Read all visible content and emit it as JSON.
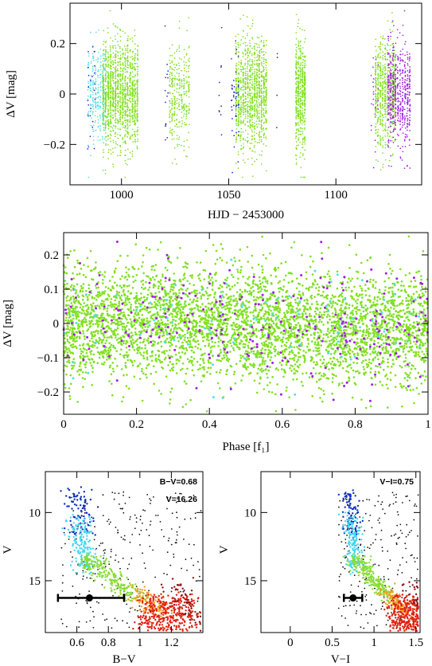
{
  "colors": {
    "cyan": "#55e0e0",
    "green": "#80e020",
    "blue": "#2222cc",
    "purple": "#a020e0",
    "black": "#111111",
    "navy": "#1030c0",
    "lightcyan": "#40d8f0",
    "lightgreen": "#88dd33",
    "orange": "#f0a020",
    "red": "#e02010",
    "darkred": "#901010",
    "marker": "#000000"
  },
  "chart_data": [
    {
      "type": "scatter",
      "name": "light-curve",
      "xlabel": "HJD − 2453000",
      "ylabel": "ΔV [mag]",
      "xlim": [
        976,
        1140
      ],
      "ylim": [
        0.36,
        -0.36
      ],
      "y_inverted": true,
      "xticks": [
        1000,
        1050,
        1100
      ],
      "yticks": [
        -0.2,
        0,
        0.2
      ],
      "xtick_labels": [
        "1000",
        "1050",
        "1100"
      ],
      "ytick_labels": [
        "−0.2",
        "0",
        "0.2"
      ],
      "scatter_amplitude_mag": 0.25,
      "observing_runs": [
        {
          "x_start": 984,
          "x_end": 993,
          "color": "cyan",
          "n": 260
        },
        {
          "x_start": 984,
          "x_end": 988,
          "color": "blue",
          "n": 25
        },
        {
          "x_start": 991,
          "x_end": 1008,
          "color": "green",
          "n": 1400
        },
        {
          "x_start": 1020,
          "x_end": 1022,
          "color": "blue",
          "n": 15
        },
        {
          "x_start": 1022,
          "x_end": 1032,
          "color": "green",
          "n": 320
        },
        {
          "x_start": 1045,
          "x_end": 1047,
          "color": "blue",
          "n": 10
        },
        {
          "x_start": 1051,
          "x_end": 1055,
          "color": "blue",
          "n": 45
        },
        {
          "x_start": 1053,
          "x_end": 1068,
          "color": "green",
          "n": 1100
        },
        {
          "x_start": 1072,
          "x_end": 1073,
          "color": "blue",
          "n": 4
        },
        {
          "x_start": 1081,
          "x_end": 1086,
          "color": "green",
          "n": 520
        },
        {
          "x_start": 1116,
          "x_end": 1120,
          "color": "purple",
          "n": 25
        },
        {
          "x_start": 1118,
          "x_end": 1128,
          "color": "green",
          "n": 650
        },
        {
          "x_start": 1124,
          "x_end": 1135,
          "color": "purple",
          "n": 550
        }
      ]
    },
    {
      "type": "scatter",
      "name": "phased-light-curve",
      "xlabel": "Phase [f₁]",
      "ylabel": "ΔV [mag]",
      "xlim": [
        0,
        1
      ],
      "ylim": [
        0.265,
        -0.265
      ],
      "y_inverted": true,
      "xticks": [
        0,
        0.2,
        0.4,
        0.6,
        0.8,
        1
      ],
      "xtick_labels": [
        "0",
        "0.2",
        "0.4",
        "0.6",
        "0.8",
        "1"
      ],
      "yticks": [
        -0.2,
        -0.1,
        0,
        0.1,
        0.2
      ],
      "ytick_labels": [
        "−0.2",
        "−0.1",
        "0",
        "0.1",
        "0.2"
      ],
      "scatter_sigma_mag": 0.09,
      "series_counts": {
        "green": 4200,
        "purple": 260,
        "cyan": 90
      }
    },
    {
      "type": "scatter",
      "name": "cmd-bv",
      "xlabel": "B−V",
      "ylabel": "V",
      "xlim": [
        0.4,
        1.4
      ],
      "ylim": [
        7.0,
        18.8
      ],
      "y_inverted": true,
      "xticks": [
        0.6,
        0.8,
        1,
        1.2
      ],
      "xtick_labels": [
        "0.6",
        "0.8",
        "1",
        "1.2"
      ],
      "yticks": [
        10,
        15
      ],
      "ytick_labels": [
        "10",
        "15"
      ],
      "annotation_lines": [
        "B−V=0.68",
        "V=16.26"
      ],
      "star": {
        "x": 0.68,
        "y": 16.26,
        "xerr_low": 0.2,
        "xerr_high": 0.22
      }
    },
    {
      "type": "scatter",
      "name": "cmd-vi",
      "xlabel": "V−I",
      "ylabel": "V",
      "xlim": [
        -0.35,
        1.55
      ],
      "ylim": [
        7.0,
        18.8
      ],
      "y_inverted": true,
      "xticks": [
        0,
        0.5,
        1,
        1.5
      ],
      "xtick_labels": [
        "0",
        "0.5",
        "1",
        "1.5"
      ],
      "yticks": [
        10,
        15
      ],
      "ytick_labels": [
        "10",
        "15"
      ],
      "annotation_lines": [
        "V−I=0.75"
      ],
      "star": {
        "x": 0.75,
        "y": 16.26,
        "xerr_low": 0.11,
        "xerr_high": 0.11
      }
    }
  ]
}
